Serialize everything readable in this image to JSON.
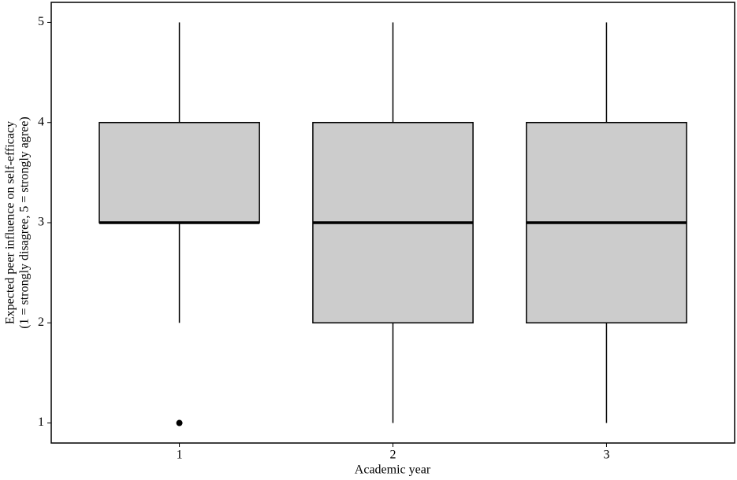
{
  "chart_data": {
    "type": "box",
    "x_label": "Academic year",
    "y_label": [
      "Expected peer influence on self-efficacy",
      "(1 = strongly disagree, 5 = strongly agree)"
    ],
    "categories": [
      "1",
      "2",
      "3"
    ],
    "boxes": [
      {
        "min": 2,
        "q1": 3,
        "median": 3,
        "q3": 4,
        "max": 5,
        "outliers": [
          1
        ]
      },
      {
        "min": 1,
        "q1": 2,
        "median": 3,
        "q3": 4,
        "max": 5,
        "outliers": []
      },
      {
        "min": 1,
        "q1": 2,
        "median": 3,
        "q3": 4,
        "max": 5,
        "outliers": []
      }
    ],
    "color": "#cccccc",
    "ylim": [
      0.8,
      5.2
    ],
    "yticks": [
      1,
      2,
      3,
      4,
      5
    ],
    "grid": false
  }
}
